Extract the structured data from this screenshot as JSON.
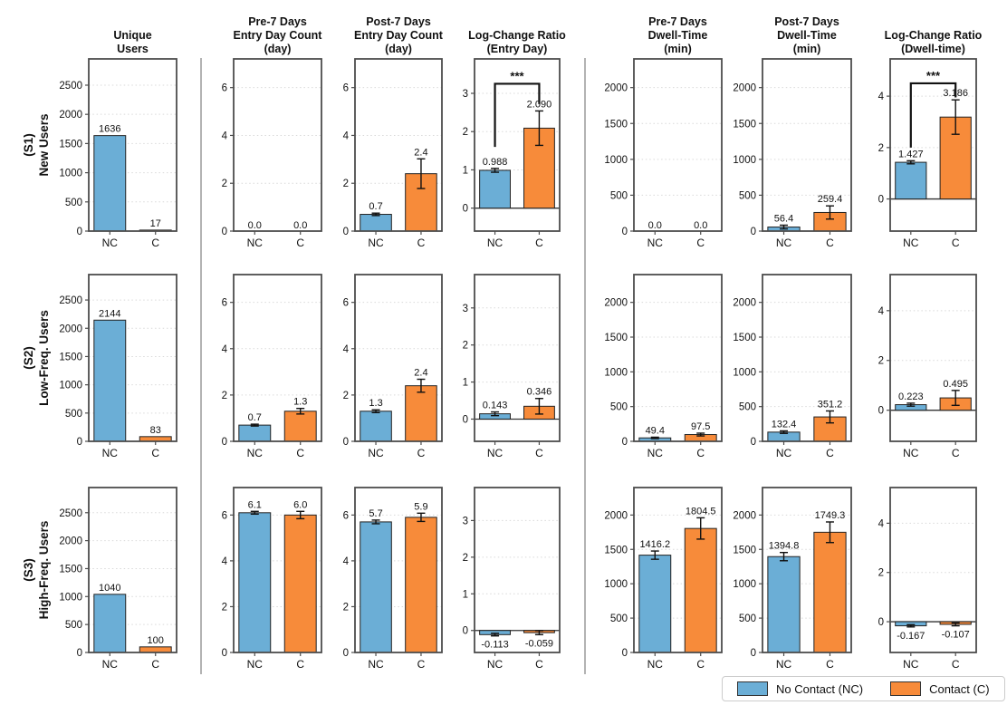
{
  "chart_data": {
    "type": "bar",
    "categories": [
      "NC",
      "C"
    ],
    "style": {
      "bar_colors": [
        "#6baed6",
        "#f78b3a"
      ],
      "bar_edge": "#222222",
      "error_color": "#111111",
      "grid_color": "#d9d9d9",
      "axes_color": "#4d4d4d",
      "divider_color": "#b3b3b3"
    },
    "columns": [
      {
        "id": "unique-users",
        "title": "Unique\nUsers",
        "ticks": [
          0,
          500,
          1000,
          1500,
          2000,
          2500
        ],
        "ylim": [
          0,
          2950
        ],
        "zero_line": false
      },
      {
        "id": "pre7-entry-day",
        "title": "Pre-7 Days\nEntry Day Count\n(day)",
        "ticks": [
          0,
          2,
          4,
          6
        ],
        "ylim": [
          0,
          7.2
        ],
        "zero_line": false
      },
      {
        "id": "post7-entry-day",
        "title": "Post-7 Days\nEntry Day Count\n(day)",
        "ticks": [
          0,
          2,
          4,
          6
        ],
        "ylim": [
          0,
          7.2
        ],
        "zero_line": false
      },
      {
        "id": "logchange-entry-day",
        "title": "Log-Change Ratio\n(Entry Day)",
        "ticks": [
          0,
          1,
          2,
          3
        ],
        "ylim": [
          -0.6,
          3.9
        ],
        "zero_line": true
      },
      {
        "id": "pre7-dwell",
        "title": "Pre-7 Days\nDwell-Time\n(min)",
        "ticks": [
          0,
          500,
          1000,
          1500,
          2000
        ],
        "ylim": [
          0,
          2400
        ],
        "zero_line": false
      },
      {
        "id": "post7-dwell",
        "title": "Post-7 Days\nDwell-Time\n(min)",
        "ticks": [
          0,
          500,
          1000,
          1500,
          2000
        ],
        "ylim": [
          0,
          2400
        ],
        "zero_line": false
      },
      {
        "id": "logchange-dwell",
        "title": "Log-Change Ratio\n(Dwell-time)",
        "ticks": [
          0,
          2,
          4
        ],
        "ylim": [
          -1.25,
          5.45
        ],
        "zero_line": true
      }
    ],
    "rows": [
      {
        "id": "s1",
        "label": "(S1)\nNew Users",
        "panels": [
          {
            "values": [
              1636,
              17
            ],
            "labels": [
              "1636",
              "17"
            ],
            "errors": [
              0,
              0
            ]
          },
          {
            "values": [
              0,
              0
            ],
            "labels": [
              "0.0",
              "0.0"
            ],
            "errors": [
              0,
              0
            ]
          },
          {
            "values": [
              0.7,
              2.4
            ],
            "labels": [
              "0.7",
              "2.4"
            ],
            "errors": [
              0.05,
              0.62
            ]
          },
          {
            "values": [
              0.988,
              2.09
            ],
            "labels": [
              "0.988",
              "2.090"
            ],
            "errors": [
              0.05,
              0.45
            ],
            "sig": {
              "label": "***",
              "y_left": 1.6,
              "y_top": 3.25,
              "y_right": 2.72
            }
          },
          {
            "values": [
              0,
              0
            ],
            "labels": [
              "0.0",
              "0.0"
            ],
            "errors": [
              0,
              0
            ]
          },
          {
            "values": [
              56.4,
              259.4
            ],
            "labels": [
              "56.4",
              "259.4"
            ],
            "errors": [
              26,
              92
            ]
          },
          {
            "values": [
              1.427,
              3.186
            ],
            "labels": [
              "1.427",
              "3.186"
            ],
            "errors": [
              0.06,
              0.67
            ],
            "sig": {
              "label": "***",
              "y_left": 2.0,
              "y_top": 4.5,
              "y_right": 3.95
            }
          }
        ]
      },
      {
        "id": "s2",
        "label": "(S2)\nLow-Freq. Users",
        "panels": [
          {
            "values": [
              2144,
              83
            ],
            "labels": [
              "2144",
              "83"
            ],
            "errors": [
              0,
              0
            ]
          },
          {
            "values": [
              0.7,
              1.3
            ],
            "labels": [
              "0.7",
              "1.3"
            ],
            "errors": [
              0.04,
              0.12
            ]
          },
          {
            "values": [
              1.3,
              2.4
            ],
            "labels": [
              "1.3",
              "2.4"
            ],
            "errors": [
              0.06,
              0.28
            ]
          },
          {
            "values": [
              0.143,
              0.346
            ],
            "labels": [
              "0.143",
              "0.346"
            ],
            "errors": [
              0.05,
              0.21
            ]
          },
          {
            "values": [
              49.4,
              97.5
            ],
            "labels": [
              "49.4",
              "97.5"
            ],
            "errors": [
              10,
              20
            ]
          },
          {
            "values": [
              132.4,
              351.2
            ],
            "labels": [
              "132.4",
              "351.2"
            ],
            "errors": [
              18,
              86
            ]
          },
          {
            "values": [
              0.223,
              0.495
            ],
            "labels": [
              "0.223",
              "0.495"
            ],
            "errors": [
              0.06,
              0.3
            ]
          }
        ]
      },
      {
        "id": "s3",
        "label": "(S3)\nHigh-Freq. Users",
        "panels": [
          {
            "values": [
              1040,
              100
            ],
            "labels": [
              "1040",
              "100"
            ],
            "errors": [
              0,
              0
            ]
          },
          {
            "values": [
              6.1,
              6.0
            ],
            "labels": [
              "6.1",
              "6.0"
            ],
            "errors": [
              0.06,
              0.16
            ]
          },
          {
            "values": [
              5.7,
              5.9
            ],
            "labels": [
              "5.7",
              "5.9"
            ],
            "errors": [
              0.08,
              0.18
            ]
          },
          {
            "values": [
              -0.113,
              -0.059
            ],
            "labels": [
              "-0.113",
              "-0.059"
            ],
            "errors": [
              0.035,
              0.055
            ]
          },
          {
            "values": [
              1416.2,
              1804.5
            ],
            "labels": [
              "1416.2",
              "1804.5"
            ],
            "errors": [
              60,
              155
            ]
          },
          {
            "values": [
              1394.8,
              1749.3
            ],
            "labels": [
              "1394.8",
              "1749.3"
            ],
            "errors": [
              60,
              150
            ]
          },
          {
            "values": [
              -0.167,
              -0.107
            ],
            "labels": [
              "-0.167",
              "-0.107"
            ],
            "errors": [
              0.045,
              0.06
            ]
          }
        ]
      }
    ],
    "legend": {
      "position": "bottom-right",
      "items": [
        {
          "label": "No Contact (NC)",
          "color": "#6baed6"
        },
        {
          "label": "Contact (C)",
          "color": "#f78b3a"
        }
      ]
    }
  }
}
